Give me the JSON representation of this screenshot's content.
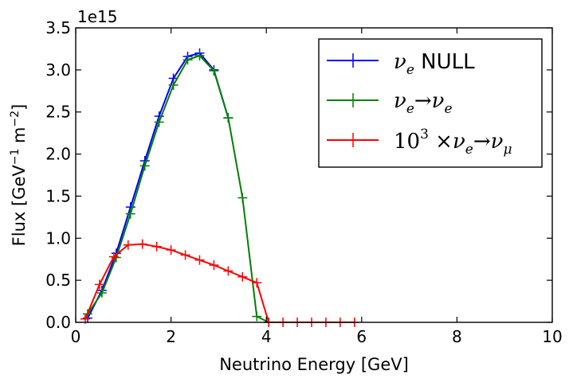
{
  "chart_data": {
    "type": "line",
    "title": "",
    "xlabel": "Neutrino Energy [GeV]",
    "ylabel_text": "Flux [GeV",
    "ylabel_exp": "−1",
    "ylabel_mid": " m",
    "ylabel_exp2": "−2",
    "ylabel_end": "]",
    "offset_text": "1e15",
    "xlim": [
      0,
      10
    ],
    "ylim": [
      0,
      3.5
    ],
    "xticks": [
      0,
      2,
      4,
      6,
      8,
      10
    ],
    "xtick_labels": [
      "0",
      "2",
      "4",
      "6",
      "8",
      "10"
    ],
    "yticks": [
      0,
      0.5,
      1.0,
      1.5,
      2.0,
      2.5,
      3.0,
      3.5
    ],
    "ytick_labels": [
      "0.0",
      "0.5",
      "1.0",
      "1.5",
      "2.0",
      "2.5",
      "3.0",
      "3.5"
    ],
    "legend_position": "upper right",
    "series": [
      {
        "name": "ν_e NULL",
        "color": "#0000ff",
        "x": [
          0.25,
          0.55,
          0.85,
          1.15,
          1.45,
          1.75,
          2.05,
          2.35,
          2.6,
          2.9,
          3.2
        ],
        "y": [
          0.05,
          0.38,
          0.82,
          1.37,
          1.92,
          2.45,
          2.9,
          3.16,
          3.2,
          3.0,
          2.43
        ]
      },
      {
        "name": "ν_e → ν_e",
        "color": "#008000",
        "x": [
          0.25,
          0.55,
          0.85,
          1.15,
          1.45,
          1.75,
          2.05,
          2.35,
          2.6,
          2.9,
          3.2,
          3.5,
          3.8,
          4.05
        ],
        "y": [
          0.1,
          0.35,
          0.77,
          1.29,
          1.86,
          2.38,
          2.82,
          3.12,
          3.17,
          2.99,
          2.43,
          1.48,
          0.07,
          0.0
        ]
      },
      {
        "name": "10³ ×ν_e → ν_μ",
        "color": "#ff0000",
        "x": [
          0.2,
          0.5,
          0.8,
          1.1,
          1.4,
          1.7,
          2.0,
          2.3,
          2.6,
          2.9,
          3.2,
          3.5,
          3.8,
          4.05,
          4.35,
          4.65,
          4.95,
          5.25,
          5.55,
          5.85
        ],
        "y": [
          0.04,
          0.45,
          0.78,
          0.92,
          0.93,
          0.9,
          0.86,
          0.8,
          0.74,
          0.68,
          0.61,
          0.54,
          0.47,
          0.0,
          0.0,
          0.0,
          0.0,
          0.0,
          0.0,
          0.0
        ]
      }
    ],
    "legend": [
      {
        "sym": "ν",
        "sub": "e",
        "rest": " NULL"
      },
      {
        "sym": "ν",
        "sub": "e",
        "arrow": "→",
        "sym2": "ν",
        "sub2": "e"
      },
      {
        "pre": "10",
        "sup": "3",
        "mid": " ×",
        "sym": "ν",
        "sub": "e",
        "arrow": "→",
        "sym2": "ν",
        "sub2": "μ"
      }
    ]
  }
}
